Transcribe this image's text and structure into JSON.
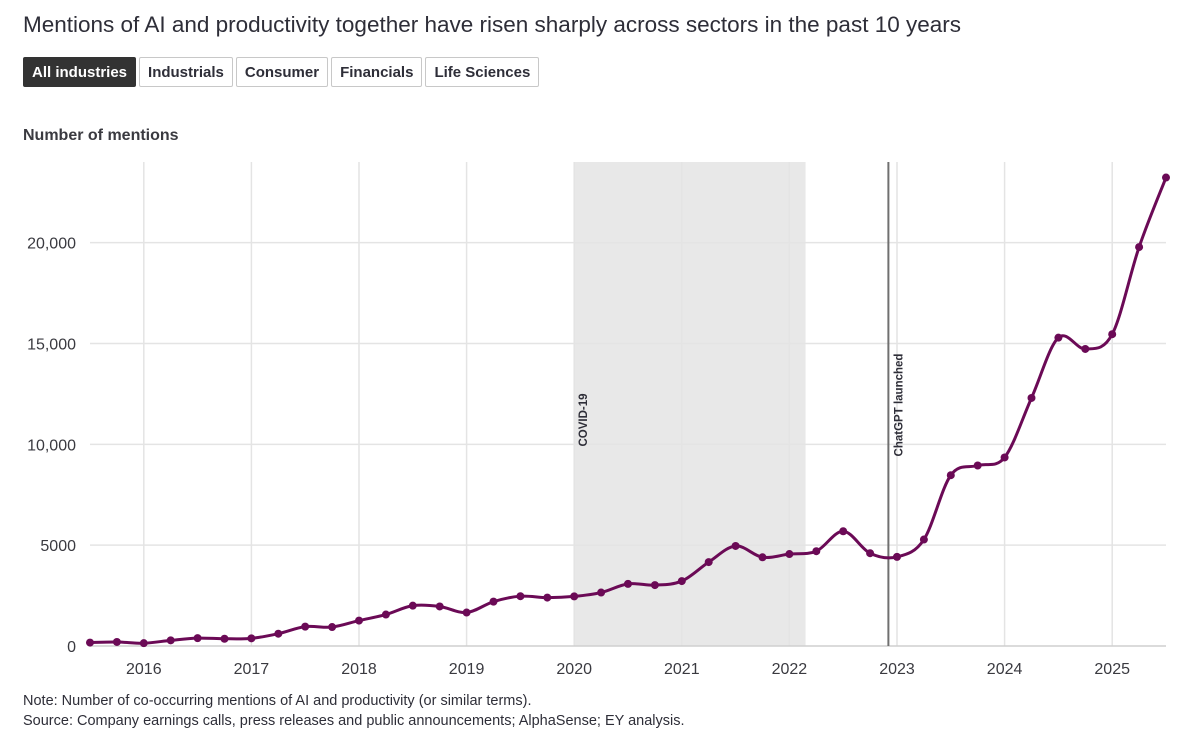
{
  "title": "Mentions of AI and productivity together have risen sharply across sectors in the past 10 years",
  "tabs": [
    {
      "label": "All industries",
      "active": true
    },
    {
      "label": "Industrials",
      "active": false
    },
    {
      "label": "Consumer",
      "active": false
    },
    {
      "label": "Financials",
      "active": false
    },
    {
      "label": "Life Sciences",
      "active": false
    }
  ],
  "note": "Note: Number of co-occurring mentions of AI and productivity (or similar terms).",
  "source": "Source: Company earnings calls, press releases and public announcements; AlphaSense; EY analysis.",
  "colors": {
    "line": "#6b0a56",
    "band": "#e8e8e8",
    "grid": "#e4e4e4",
    "marker": "#707070"
  },
  "chart_data": {
    "type": "line",
    "ylabel": "Number of mentions",
    "ylim": [
      0,
      24000
    ],
    "xlim": [
      2015.5,
      2025.5
    ],
    "yticks": [
      {
        "value": 0,
        "label": "0"
      },
      {
        "value": 5000,
        "label": "5000"
      },
      {
        "value": 10000,
        "label": "10,000"
      },
      {
        "value": 15000,
        "label": "15,000"
      },
      {
        "value": 20000,
        "label": "20,000"
      }
    ],
    "xticks": [
      {
        "value": 2016,
        "label": "2016"
      },
      {
        "value": 2017,
        "label": "2017"
      },
      {
        "value": 2018,
        "label": "2018"
      },
      {
        "value": 2019,
        "label": "2019"
      },
      {
        "value": 2020,
        "label": "2020"
      },
      {
        "value": 2021,
        "label": "2021"
      },
      {
        "value": 2022,
        "label": "2022"
      },
      {
        "value": 2023,
        "label": "2023"
      },
      {
        "value": 2024,
        "label": "2024"
      },
      {
        "value": 2025,
        "label": "2025"
      }
    ],
    "grid": true,
    "annotations": [
      {
        "type": "band",
        "x0": 2020.0,
        "x1": 2022.15,
        "label": "COVID-19"
      },
      {
        "type": "vline",
        "x": 2022.92,
        "label": "ChatGPT launched"
      }
    ],
    "series": [
      {
        "x": [
          2015.5,
          2015.75,
          2016.0,
          2016.25,
          2016.5,
          2016.75,
          2017.0,
          2017.25,
          2017.5,
          2017.75,
          2018.0,
          2018.25,
          2018.5,
          2018.75,
          2019.0,
          2019.25,
          2019.5,
          2019.75,
          2020.0,
          2020.25,
          2020.5,
          2020.75,
          2021.0,
          2021.25,
          2021.5,
          2021.75,
          2022.0,
          2022.25,
          2022.5,
          2022.75,
          2023.0,
          2023.25,
          2023.5,
          2023.75,
          2024.0,
          2024.25,
          2024.5,
          2024.75,
          2025.0,
          2025.25,
          2025.5
        ],
        "values": [
          170,
          200,
          140,
          280,
          390,
          360,
          380,
          610,
          960,
          940,
          1260,
          1560,
          2000,
          1960,
          1660,
          2200,
          2470,
          2400,
          2460,
          2650,
          3080,
          3020,
          3220,
          4160,
          4960,
          4400,
          4560,
          4700,
          5690,
          4600,
          4420,
          5280,
          8470,
          8950,
          9350,
          12300,
          15290,
          14730,
          15460,
          19780,
          23230
        ]
      }
    ]
  }
}
